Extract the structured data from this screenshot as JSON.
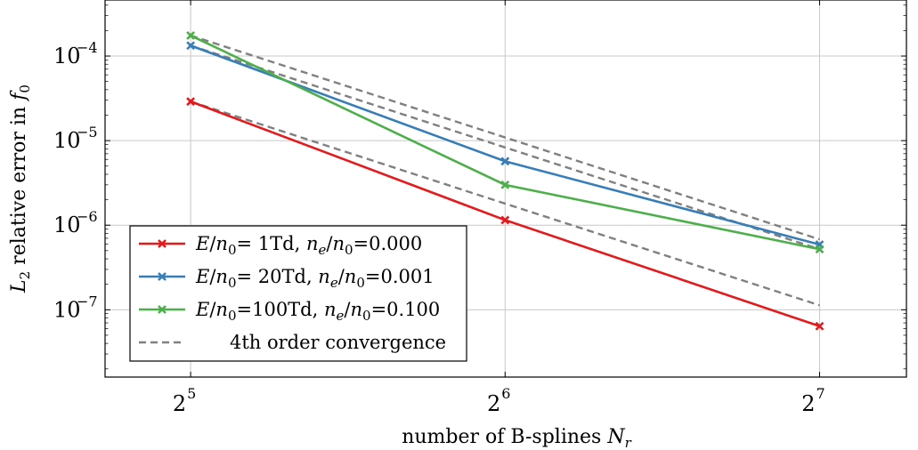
{
  "chart_data": {
    "type": "line",
    "x_scale": "log2",
    "y_scale": "log10",
    "x": [
      32,
      64,
      128
    ],
    "x_ticks": [
      {
        "value": 32,
        "base": "2",
        "exp": "5"
      },
      {
        "value": 64,
        "base": "2",
        "exp": "6"
      },
      {
        "value": 128,
        "base": "2",
        "exp": "7"
      }
    ],
    "y_ticks": [
      {
        "value": 1e-07,
        "base": "10",
        "exp": "−7"
      },
      {
        "value": 1e-06,
        "base": "10",
        "exp": "−6"
      },
      {
        "value": 1e-05,
        "base": "10",
        "exp": "−5"
      },
      {
        "value": 0.0001,
        "base": "10",
        "exp": "−4"
      }
    ],
    "xlim": [
      26.5,
      155
    ],
    "ylim": [
      1.6e-08,
      0.00046
    ],
    "grid": true,
    "legend_position": "bottom-left",
    "xlabel": {
      "text": "number of B-splines ",
      "italic_var": "N",
      "sub": "r"
    },
    "ylabel": {
      "prefix_var": "L",
      "prefix_sub": "2",
      "text": " relative error in ",
      "suffix_var": "f",
      "suffix_sub": "0"
    },
    "series": [
      {
        "name": "E/n0= 1Td, ne/n0=0.000",
        "legend": {
          "field": "1Td",
          "ratio": "0.000"
        },
        "color": "#e41a1c",
        "style": "solid",
        "marker": "x",
        "values": [
          2.9e-05,
          1.15e-06,
          6.4e-08
        ]
      },
      {
        "name": "E/n0= 20Td, ne/n0=0.001",
        "legend": {
          "field": "20Td",
          "ratio": "0.001"
        },
        "color": "#377eb8",
        "style": "solid",
        "marker": "x",
        "values": [
          0.000133,
          5.7e-06,
          5.9e-07
        ]
      },
      {
        "name": "E/n0=100Td, ne/n0=0.100",
        "legend": {
          "field": "100Td",
          "ratio": "0.100"
        },
        "color": "#4daf4a",
        "style": "solid",
        "marker": "x",
        "values": [
          0.000175,
          3e-06,
          5.2e-07
        ]
      }
    ],
    "reference_lines": [
      {
        "name": "4th order convergence",
        "color": "#808080",
        "style": "dashed",
        "values": [
          2.9e-05,
          1.8e-06,
          1.13e-07
        ]
      },
      {
        "name": "4th order convergence",
        "color": "#808080",
        "style": "dashed",
        "values": [
          0.000133,
          8.3e-06,
          5.2e-07
        ]
      },
      {
        "name": "4th order convergence",
        "color": "#808080",
        "style": "dashed",
        "values": [
          0.000175,
          1.09e-05,
          6.8e-07
        ]
      }
    ],
    "legend_entries": [
      {
        "series": 0
      },
      {
        "series": 1
      },
      {
        "series": 2
      },
      {
        "reference": "4th order convergence"
      }
    ]
  }
}
